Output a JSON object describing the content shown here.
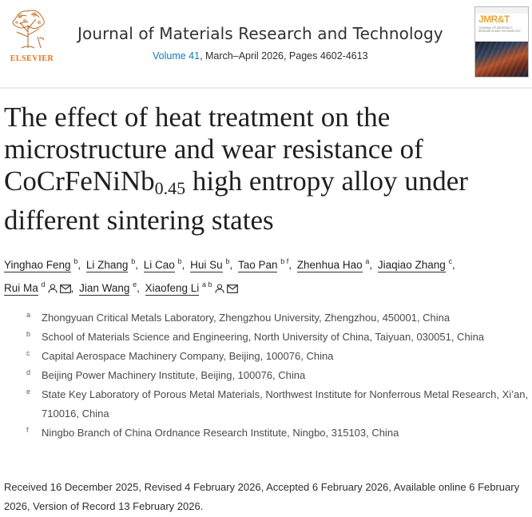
{
  "publisher": {
    "name": "ELSEVIER"
  },
  "journal": {
    "title": "Journal of Materials Research and Technology",
    "volume_link": "Volume 41",
    "meta_rest": ", March–April 2026, Pages 4602-4613",
    "cover_brand": "JMR&T",
    "cover_sub": "JOURNAL OF MATERIALS RESEARCH AND TECHNOLOGY"
  },
  "article": {
    "title_before": "The effect of heat treatment on the microstructure and wear resistance of CoCrFeNiNb",
    "title_sub": "0.45",
    "title_after": " high entropy alloy under different sintering states"
  },
  "authors": [
    {
      "name": "Yinghao Feng",
      "sup": "b"
    },
    {
      "name": "Li Zhang",
      "sup": "b"
    },
    {
      "name": "Li Cao",
      "sup": "b"
    },
    {
      "name": "Hui Su",
      "sup": "b"
    },
    {
      "name": "Tao Pan",
      "sup": "b f"
    },
    {
      "name": "Zhenhua Hao",
      "sup": "a"
    },
    {
      "name": "Jiaqiao Zhang",
      "sup": "c"
    },
    {
      "name": "Rui Ma",
      "sup": "d"
    },
    {
      "name": "Jian Wang",
      "sup": "e"
    },
    {
      "name": "Xiaofeng Li",
      "sup": "a b"
    }
  ],
  "affiliations": [
    {
      "label": "a",
      "text": "Zhongyuan Critical Metals Laboratory, Zhengzhou University, Zhengzhou, 450001, China"
    },
    {
      "label": "b",
      "text": "School of Materials Science and Engineering, North University of China, Taiyuan, 030051, China"
    },
    {
      "label": "c",
      "text": "Capital Aerospace Machinery Company, Beijing, 100076, China"
    },
    {
      "label": "d",
      "text": "Beijing Power Machinery Institute, Beijing, 100076, China"
    },
    {
      "label": "e",
      "text": "State Key Laboratory of Porous Metal Materials, Northwest Institute for Nonferrous Metal Research, Xi’an, 710016, China"
    },
    {
      "label": "f",
      "text": "Ningbo Branch of China Ordnance Research Institute, Ningbo, 315103, China"
    }
  ],
  "dates": "Received 16 December 2025, Revised 4 February 2026, Accepted 6 February 2026, Available online 6 February 2026, Version of Record 13 February 2026.",
  "colors": {
    "link": "#0c7dbb",
    "publisher": "#e9711c",
    "text": "#2e2e2e"
  }
}
